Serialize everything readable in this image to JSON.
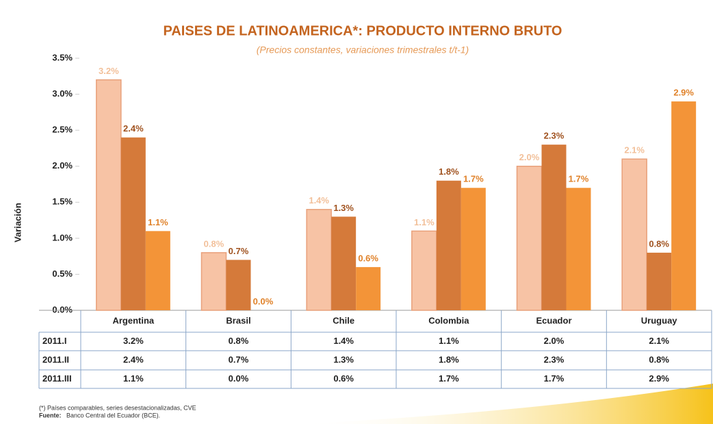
{
  "chart_data": {
    "type": "bar",
    "title": "PAISES DE LATINOAMERICA*: PRODUCTO INTERNO BRUTO",
    "subtitle": "(Precios constantes, variaciones  trimestrales t/t-1)",
    "y_label": "Variación",
    "categories": [
      "Argentina",
      "Brasil",
      "Chile",
      "Colombia",
      "Ecuador",
      "Uruguay"
    ],
    "series": [
      {
        "name": "2011.I",
        "color": "#f7c3a5",
        "label_color": "#f2c09a",
        "values": [
          3.2,
          0.8,
          1.4,
          1.1,
          2.0,
          2.1
        ],
        "value_labels": [
          "3.2%",
          "0.8%",
          "1.4%",
          "1.1%",
          "2.0%",
          "2.1%"
        ]
      },
      {
        "name": "2011.II",
        "color": "#d57a3a",
        "label_color": "#a0521f",
        "values": [
          2.4,
          0.7,
          1.3,
          1.8,
          2.3,
          0.8
        ],
        "value_labels": [
          "2.4%",
          "0.7%",
          "1.3%",
          "1.8%",
          "2.3%",
          "0.8%"
        ]
      },
      {
        "name": "2011.III",
        "color": "#f39438",
        "label_color": "#e0822a",
        "values": [
          1.1,
          0.0,
          0.6,
          1.7,
          1.7,
          2.9
        ],
        "value_labels": [
          "1.1%",
          "0.0%",
          "0.6%",
          "1.7%",
          "1.7%",
          "2.9%"
        ]
      }
    ],
    "ylim": [
      0,
      3.5
    ],
    "yticks": [
      {
        "value": 0,
        "label": "0.0%"
      },
      {
        "value": 0.5,
        "label": "0.5%"
      },
      {
        "value": 1,
        "label": "1.0%"
      },
      {
        "value": 1.5,
        "label": "1.5%"
      },
      {
        "value": 2,
        "label": "2.0%"
      },
      {
        "value": 2.5,
        "label": "2.5%"
      },
      {
        "value": 3,
        "label": "3.0%"
      },
      {
        "value": 3.5,
        "label": "3.5%"
      }
    ],
    "footnote": "(*) Países comparables, series desestacionalizadas, CVE",
    "source_label": "Fuente:",
    "source": "Banco Central del Ecuador (BCE)."
  }
}
